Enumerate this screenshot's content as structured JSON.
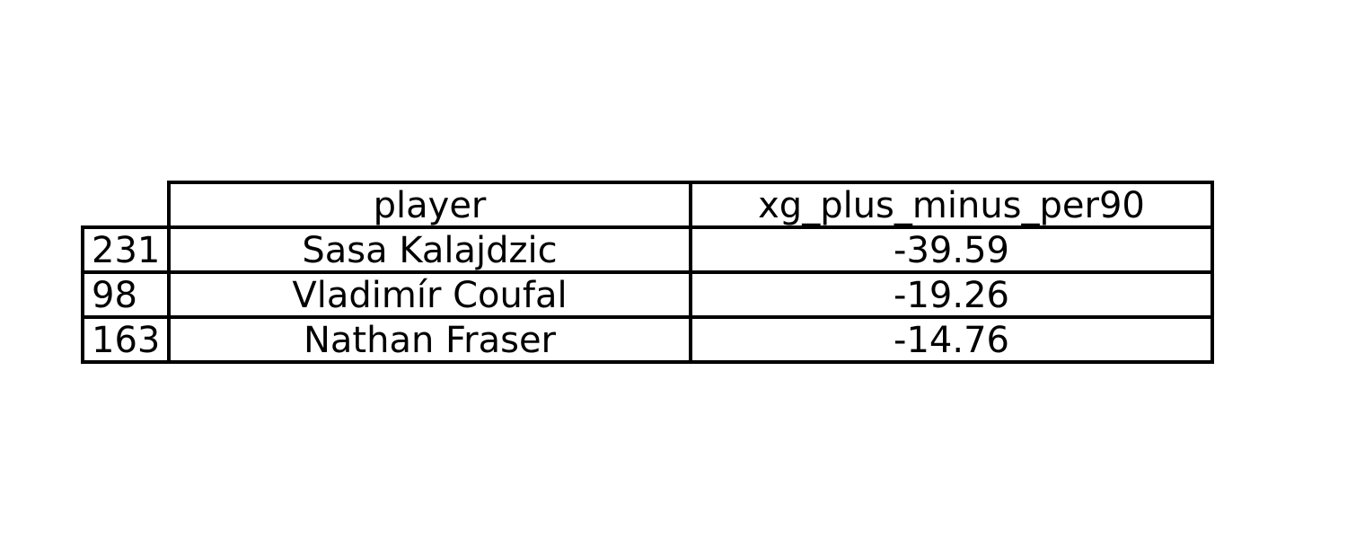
{
  "chart_data": {
    "type": "table",
    "columns": [
      "player",
      "xg_plus_minus_per90"
    ],
    "rows": [
      {
        "index": "231",
        "player": "Sasa Kalajdzic",
        "xg_plus_minus_per90": "-39.59"
      },
      {
        "index": "98",
        "player": "Vladimír Coufal",
        "xg_plus_minus_per90": "-19.26"
      },
      {
        "index": "163",
        "player": "Nathan Fraser",
        "xg_plus_minus_per90": "-14.76"
      }
    ]
  }
}
